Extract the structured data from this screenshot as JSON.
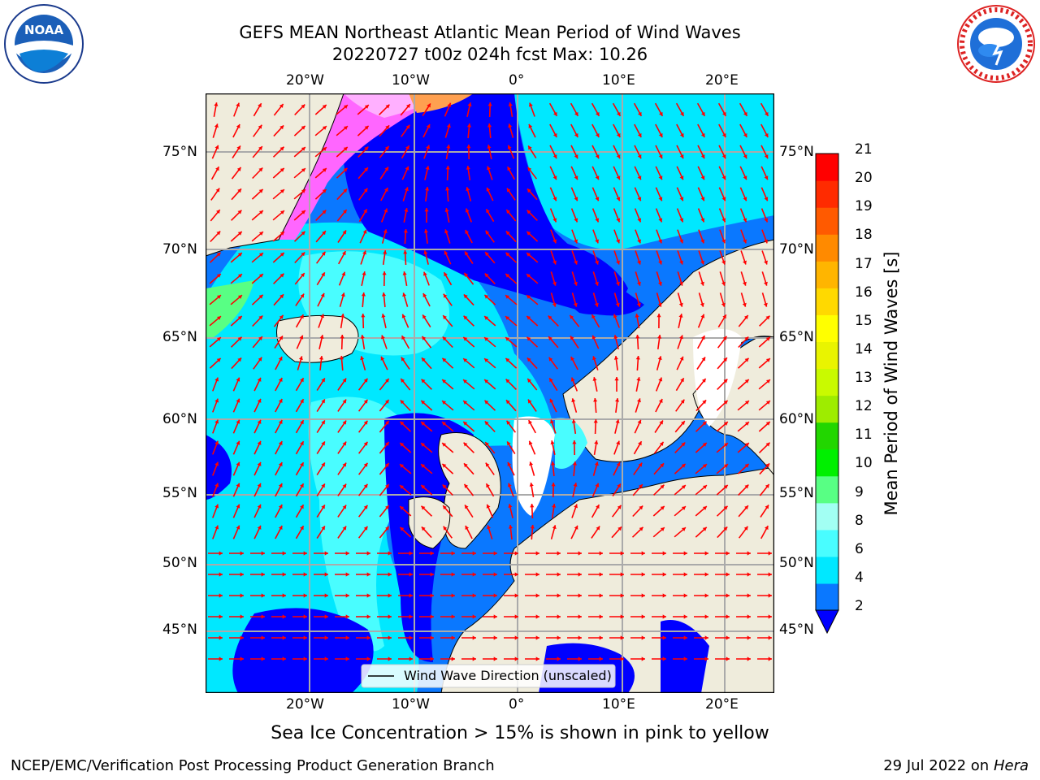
{
  "title_line1": "GEFS MEAN Northeast Atlantic Mean Period of Wind Waves",
  "title_line2": "20220727 t00z 024h fcst   Max: 10.26",
  "map": {
    "lon_labels": [
      "20°W",
      "10°W",
      "0°",
      "10°E",
      "20°E"
    ],
    "lat_labels": [
      "75°N",
      "70°N",
      "65°N",
      "60°N",
      "55°N",
      "50°N",
      "45°N"
    ],
    "legend_label": "Wind Wave Direction (unscaled)",
    "colors": {
      "land": "#efecdc",
      "ocean_low": "#0000ff",
      "ocean_mid": "#1a90ff",
      "ocean_cyan": "#00ffff",
      "ice": "#ff66ff",
      "arrow": "#ff0000"
    }
  },
  "colorbar": {
    "label": "Mean Period of Wind Waves [s]",
    "ticks": [
      "2",
      "4",
      "6",
      "8",
      "9",
      "10",
      "11",
      "12",
      "13",
      "14",
      "15",
      "16",
      "17",
      "18",
      "19",
      "20",
      "21"
    ],
    "colors": [
      "#0a78ff",
      "#00e8ff",
      "#49fdff",
      "#a2fff3",
      "#58ff84",
      "#00f000",
      "#22d600",
      "#9eec00",
      "#c9fa00",
      "#e9f400",
      "#ffff00",
      "#ffd900",
      "#ffb500",
      "#ff8a00",
      "#ff5a00",
      "#ff2b00",
      "#ff0000"
    ],
    "extend_color": "#0000ff"
  },
  "caption": "Sea Ice Concentration > 15% is shown in pink to yellow",
  "footer_left": "NCEP/EMC/Verification Post Processing Product Generation Branch",
  "footer_date": "29 Jul 2022 on",
  "footer_host": "Hera",
  "logos": {
    "left_text": "NOAA",
    "right_text": "NATIONAL WEATHER SERVICE"
  }
}
